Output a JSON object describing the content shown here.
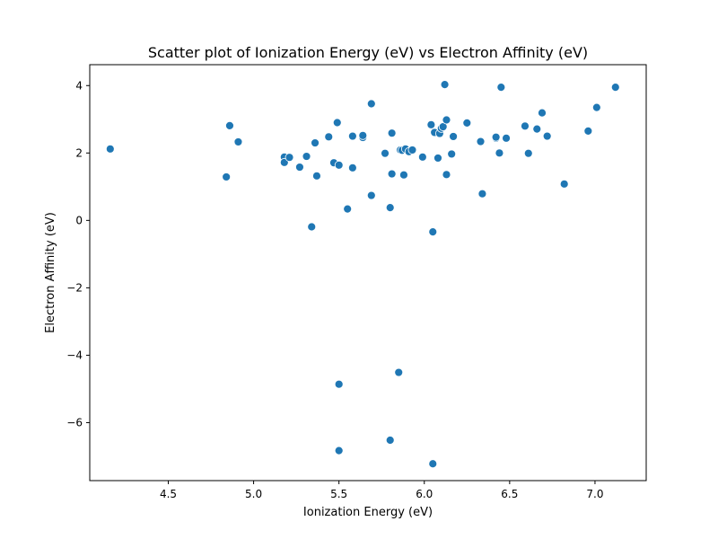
{
  "chart_data": {
    "type": "scatter",
    "title": "Scatter plot of Ionization Energy (eV) vs Electron Affinity (eV)",
    "xlabel": "Ionization Energy (eV)",
    "ylabel": "Electron Affinity (eV)",
    "xlim": [
      4.04,
      7.3
    ],
    "ylim": [
      -7.72,
      4.62
    ],
    "x_ticks": [
      4.5,
      5.0,
      5.5,
      6.0,
      6.5,
      7.0
    ],
    "x_tick_labels": [
      "4.5",
      "5.0",
      "5.5",
      "6.0",
      "6.5",
      "7.0"
    ],
    "y_ticks": [
      -6,
      -4,
      -2,
      0,
      2,
      4
    ],
    "y_tick_labels": [
      "−6",
      "−4",
      "−2",
      "0",
      "2",
      "4"
    ],
    "grid": false,
    "color": "#1f77b4",
    "points": [
      [
        4.16,
        2.12
      ],
      [
        4.84,
        1.29
      ],
      [
        4.86,
        2.81
      ],
      [
        4.91,
        2.33
      ],
      [
        5.18,
        1.88
      ],
      [
        5.18,
        1.72
      ],
      [
        5.21,
        1.87
      ],
      [
        5.27,
        1.58
      ],
      [
        5.31,
        1.9
      ],
      [
        5.34,
        -0.19
      ],
      [
        5.36,
        2.3
      ],
      [
        5.37,
        1.32
      ],
      [
        5.44,
        2.48
      ],
      [
        5.47,
        1.71
      ],
      [
        5.49,
        2.9
      ],
      [
        5.5,
        1.64
      ],
      [
        5.5,
        -4.86
      ],
      [
        5.5,
        -6.83
      ],
      [
        5.55,
        0.34
      ],
      [
        5.58,
        2.5
      ],
      [
        5.58,
        1.56
      ],
      [
        5.64,
        2.46
      ],
      [
        5.64,
        2.52
      ],
      [
        5.69,
        3.46
      ],
      [
        5.69,
        0.74
      ],
      [
        5.77,
        1.99
      ],
      [
        5.8,
        0.38
      ],
      [
        5.8,
        -6.52
      ],
      [
        5.81,
        2.59
      ],
      [
        5.81,
        1.38
      ],
      [
        5.85,
        -4.51
      ],
      [
        5.86,
        2.09
      ],
      [
        5.87,
        2.08
      ],
      [
        5.88,
        1.35
      ],
      [
        5.89,
        2.12
      ],
      [
        5.91,
        2.04
      ],
      [
        5.93,
        2.09
      ],
      [
        5.99,
        1.88
      ],
      [
        6.04,
        2.84
      ],
      [
        6.05,
        -0.34
      ],
      [
        6.05,
        -7.22
      ],
      [
        6.06,
        2.61
      ],
      [
        6.08,
        1.85
      ],
      [
        6.09,
        2.58
      ],
      [
        6.1,
        2.73
      ],
      [
        6.11,
        2.78
      ],
      [
        6.12,
        4.03
      ],
      [
        6.13,
        2.98
      ],
      [
        6.13,
        1.36
      ],
      [
        6.16,
        1.97
      ],
      [
        6.17,
        2.49
      ],
      [
        6.25,
        2.89
      ],
      [
        6.33,
        2.34
      ],
      [
        6.34,
        0.79
      ],
      [
        6.42,
        2.44
      ],
      [
        6.42,
        2.47
      ],
      [
        6.44,
        2.0
      ],
      [
        6.45,
        3.95
      ],
      [
        6.48,
        2.44
      ],
      [
        6.59,
        2.8
      ],
      [
        6.61,
        1.99
      ],
      [
        6.66,
        2.71
      ],
      [
        6.69,
        3.19
      ],
      [
        6.72,
        2.5
      ],
      [
        6.82,
        1.08
      ],
      [
        6.96,
        2.65
      ],
      [
        7.01,
        3.35
      ],
      [
        7.12,
        3.95
      ]
    ]
  }
}
